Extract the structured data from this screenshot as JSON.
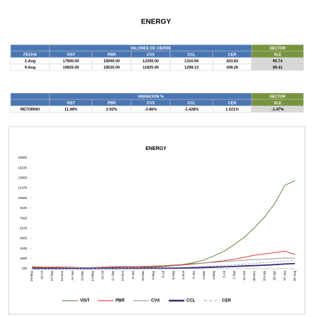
{
  "title": "ENERGY",
  "table1": {
    "group": "VALORES DE CIERRE",
    "sector": "SECTOR",
    "columns": [
      "FECHA",
      "VIST",
      "PBR",
      "CVX",
      "CCL",
      "CER",
      "XLE"
    ],
    "rows": [
      [
        "2-Aug",
        "17800.00",
        "18000.00",
        "12300.00",
        "1316.94",
        "433.83",
        "90.74"
      ],
      [
        "9-Aug",
        "19825.00",
        "18525.00",
        "11825.00",
        "1298.13",
        "438.26",
        "89.41"
      ]
    ]
  },
  "table2": {
    "group": "VARIACION %",
    "sector": "SECTOR",
    "columns": [
      "VIST",
      "PBR",
      "CVX",
      "CCL",
      "CER",
      "XLE"
    ],
    "rows": [
      [
        "RETORNO",
        "11.38%",
        "2.92%",
        "-3.86%",
        "-1.428%",
        "1.021%",
        "-1.47%"
      ]
    ]
  },
  "chart_data": {
    "type": "line",
    "title": "ENERGY",
    "categories": [
      "19-May",
      "18-Jul",
      "16-Sep",
      "15-Nov",
      "14-Jan",
      "15-Mar",
      "14-May",
      "13-Jul",
      "11-Sep",
      "10-Nov",
      "9-Jan",
      "10-Mar",
      "9-May",
      "8-Jul",
      "6-Sep",
      "5-Nov",
      "4-Jan",
      "5-Mar",
      "4-May",
      "3-Jul",
      "1-Sep",
      "31-Oct",
      "30-Dec",
      "28-Feb",
      "28-Apr",
      "27-Jun",
      "26-Aug"
    ],
    "ylim": [
      100,
      16600
    ],
    "yticks": [
      100,
      1600,
      3100,
      4600,
      6100,
      7600,
      9100,
      10600,
      12100,
      13600,
      15100,
      16600
    ],
    "series": [
      {
        "name": "VIST",
        "color": "#4f7a28",
        "style": "solid",
        "values": [
          250,
          200,
          180,
          160,
          140,
          130,
          120,
          160,
          210,
          230,
          190,
          260,
          320,
          400,
          550,
          750,
          1000,
          1400,
          2000,
          2700,
          3700,
          4800,
          6200,
          7800,
          9800,
          12500,
          13200
        ]
      },
      {
        "name": "PBR",
        "color": "#e02020",
        "style": "solid",
        "values": [
          300,
          280,
          260,
          240,
          220,
          150,
          180,
          250,
          300,
          330,
          300,
          350,
          400,
          450,
          550,
          650,
          800,
          950,
          1100,
          1300,
          1500,
          1800,
          2100,
          2300,
          2500,
          2700,
          2200
        ]
      },
      {
        "name": "CVX",
        "color": "#8c8c8c",
        "style": "solid",
        "values": [
          400,
          380,
          370,
          360,
          340,
          260,
          300,
          380,
          420,
          440,
          420,
          460,
          500,
          560,
          650,
          750,
          850,
          950,
          1050,
          1150,
          1250,
          1350,
          1450,
          1500,
          1600,
          1700,
          1650
        ]
      },
      {
        "name": "CCL",
        "color": "#3a2a7a",
        "style": "thick",
        "values": [
          100,
          100,
          105,
          110,
          115,
          120,
          125,
          130,
          135,
          140,
          145,
          150,
          160,
          175,
          190,
          210,
          240,
          280,
          330,
          380,
          430,
          500,
          560,
          620,
          700,
          800,
          850
        ]
      },
      {
        "name": "CER",
        "color": "#8fa8c8",
        "style": "dashed",
        "values": [
          100,
          102,
          105,
          108,
          112,
          118,
          125,
          135,
          145,
          160,
          175,
          195,
          215,
          240,
          270,
          310,
          360,
          420,
          490,
          570,
          660,
          760,
          870,
          990,
          1100,
          1220,
          1300
        ]
      }
    ]
  }
}
